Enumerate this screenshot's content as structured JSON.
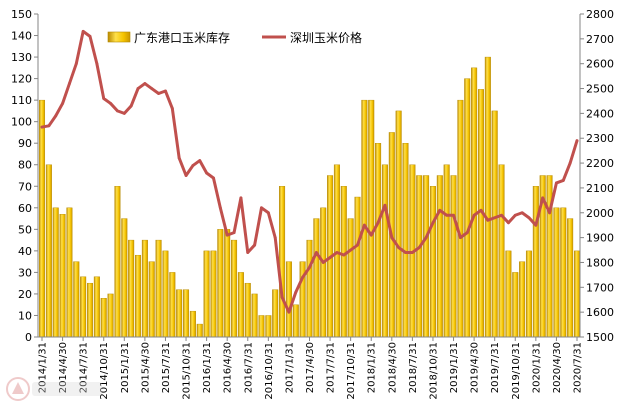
{
  "chart_data": {
    "type": "bar",
    "x": [
      "2014/1/31",
      "2014/2/28",
      "2014/3/31",
      "2014/4/30",
      "2014/5/31",
      "2014/6/30",
      "2014/7/31",
      "2014/8/31",
      "2014/9/30",
      "2014/10/31",
      "2014/11/30",
      "2014/12/31",
      "2015/1/31",
      "2015/2/28",
      "2015/3/31",
      "2015/4/30",
      "2015/5/31",
      "2015/6/30",
      "2015/7/31",
      "2015/8/31",
      "2015/9/30",
      "2015/10/31",
      "2015/11/30",
      "2015/12/31",
      "2016/1/31",
      "2016/2/29",
      "2016/3/31",
      "2016/4/30",
      "2016/5/31",
      "2016/6/30",
      "2016/7/31",
      "2016/8/31",
      "2016/9/30",
      "2016/10/31",
      "2016/11/30",
      "2016/12/31",
      "2017/1/31",
      "2017/2/28",
      "2017/3/31",
      "2017/4/30",
      "2017/5/31",
      "2017/6/30",
      "2017/7/31",
      "2017/8/31",
      "2017/9/30",
      "2017/10/31",
      "2017/11/30",
      "2017/12/31",
      "2018/1/31",
      "2018/2/28",
      "2018/3/31",
      "2018/4/30",
      "2018/5/31",
      "2018/6/30",
      "2018/7/31",
      "2018/8/31",
      "2018/9/30",
      "2018/10/31",
      "2018/11/30",
      "2018/12/31",
      "2019/1/31",
      "2019/2/28",
      "2019/3/31",
      "2019/4/30",
      "2019/5/31",
      "2019/6/30",
      "2019/7/31",
      "2019/8/31",
      "2019/9/30",
      "2019/10/31",
      "2019/11/30",
      "2019/12/31",
      "2020/1/31",
      "2020/2/29",
      "2020/3/31",
      "2020/4/30",
      "2020/5/31",
      "2020/6/30",
      "2020/7/31"
    ],
    "xticks": [
      "2014/1/31",
      "2014/4/30",
      "2014/7/31",
      "2014/10/31",
      "2015/1/31",
      "2015/4/30",
      "2015/7/31",
      "2015/10/31",
      "2016/1/31",
      "2016/4/30",
      "2016/7/31",
      "2016/10/31",
      "2017/1/31",
      "2017/4/30",
      "2017/7/31",
      "2017/10/31",
      "2018/1/31",
      "2018/4/30",
      "2018/7/31",
      "2018/10/31",
      "2019/1/31",
      "2019/4/30",
      "2019/7/31",
      "2019/10/31",
      "2020/1/31",
      "2020/4/30",
      "2020/7/31"
    ],
    "series": [
      {
        "name": "广东港口玉米库存",
        "type": "bar",
        "axis": "left",
        "color": "#F2C200",
        "values": [
          110,
          80,
          60,
          57,
          60,
          35,
          28,
          25,
          28,
          18,
          20,
          70,
          55,
          45,
          38,
          45,
          35,
          45,
          40,
          30,
          22,
          22,
          12,
          6,
          40,
          40,
          50,
          50,
          45,
          30,
          25,
          20,
          10,
          10,
          22,
          70,
          35,
          15,
          35,
          45,
          55,
          60,
          75,
          80,
          70,
          55,
          65,
          110,
          110,
          90,
          80,
          95,
          105,
          90,
          80,
          75,
          75,
          70,
          75,
          80,
          75,
          110,
          120,
          125,
          115,
          130,
          105,
          80,
          40,
          30,
          35,
          40,
          70,
          75,
          75,
          60,
          60,
          55,
          40
        ]
      },
      {
        "name": "深圳玉米价格",
        "type": "line",
        "axis": "right",
        "color": "#C0504D",
        "values": [
          2345,
          2350,
          2390,
          2440,
          2520,
          2600,
          2730,
          2710,
          2600,
          2460,
          2440,
          2410,
          2400,
          2430,
          2500,
          2520,
          2500,
          2480,
          2490,
          2420,
          2220,
          2150,
          2190,
          2210,
          2160,
          2140,
          2020,
          1910,
          1920,
          2060,
          1840,
          1870,
          2020,
          2000,
          1900,
          1660,
          1600,
          1680,
          1740,
          1780,
          1840,
          1800,
          1820,
          1840,
          1830,
          1850,
          1870,
          1950,
          1910,
          1960,
          2030,
          1900,
          1860,
          1840,
          1840,
          1860,
          1900,
          1960,
          2010,
          1990,
          1990,
          1900,
          1920,
          1990,
          2010,
          1970,
          1980,
          1990,
          1960,
          1990,
          2000,
          1980,
          1950,
          2060,
          2000,
          2120,
          2130,
          2200,
          2290
        ]
      }
    ],
    "y_left": {
      "min": 0,
      "max": 150
    },
    "y_right": {
      "min": 1500,
      "max": 2800
    },
    "yticks_left": [
      0,
      10,
      20,
      30,
      40,
      50,
      60,
      70,
      80,
      90,
      100,
      110,
      120,
      130,
      140,
      150
    ],
    "yticks_right": [
      1500,
      1600,
      1700,
      1800,
      1900,
      2000,
      2100,
      2200,
      2300,
      2400,
      2500,
      2600,
      2700,
      2800
    ],
    "grid": false,
    "legend_position": "top"
  }
}
